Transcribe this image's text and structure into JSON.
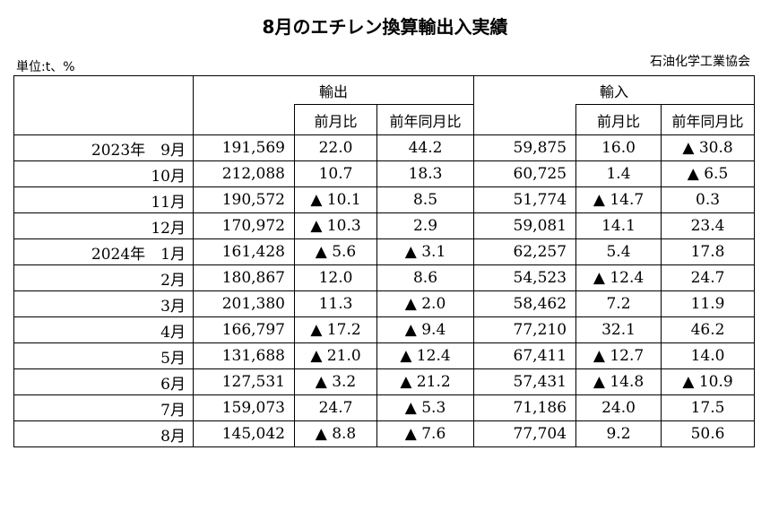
{
  "title": "8月のエチレン換算輸出入実績",
  "unit": "単位:t、%",
  "source": "石油化学工業協会",
  "headers": {
    "export": "輸出",
    "import": "輸入",
    "mom": "前月比",
    "yoy": "前年同月比"
  },
  "rows": [
    {
      "period": "2023年　9月",
      "exp": "191,569",
      "exp_mom": "22.0",
      "exp_yoy": "44.2",
      "imp": "59,875",
      "imp_mom": "16.0",
      "imp_yoy": "▲ 30.8"
    },
    {
      "period": "10月",
      "exp": "212,088",
      "exp_mom": "10.7",
      "exp_yoy": "18.3",
      "imp": "60,725",
      "imp_mom": "1.4",
      "imp_yoy": "▲ 6.5"
    },
    {
      "period": "11月",
      "exp": "190,572",
      "exp_mom": "▲ 10.1",
      "exp_yoy": "8.5",
      "imp": "51,774",
      "imp_mom": "▲ 14.7",
      "imp_yoy": "0.3"
    },
    {
      "period": "12月",
      "exp": "170,972",
      "exp_mom": "▲ 10.3",
      "exp_yoy": "2.9",
      "imp": "59,081",
      "imp_mom": "14.1",
      "imp_yoy": "23.4"
    },
    {
      "period": "2024年　1月",
      "exp": "161,428",
      "exp_mom": "▲ 5.6",
      "exp_yoy": "▲ 3.1",
      "imp": "62,257",
      "imp_mom": "5.4",
      "imp_yoy": "17.8"
    },
    {
      "period": "2月",
      "exp": "180,867",
      "exp_mom": "12.0",
      "exp_yoy": "8.6",
      "imp": "54,523",
      "imp_mom": "▲ 12.4",
      "imp_yoy": "24.7"
    },
    {
      "period": "3月",
      "exp": "201,380",
      "exp_mom": "11.3",
      "exp_yoy": "▲ 2.0",
      "imp": "58,462",
      "imp_mom": "7.2",
      "imp_yoy": "11.9"
    },
    {
      "period": "4月",
      "exp": "166,797",
      "exp_mom": "▲ 17.2",
      "exp_yoy": "▲ 9.4",
      "imp": "77,210",
      "imp_mom": "32.1",
      "imp_yoy": "46.2"
    },
    {
      "period": "5月",
      "exp": "131,688",
      "exp_mom": "▲ 21.0",
      "exp_yoy": "▲ 12.4",
      "imp": "67,411",
      "imp_mom": "▲ 12.7",
      "imp_yoy": "14.0"
    },
    {
      "period": "6月",
      "exp": "127,531",
      "exp_mom": "▲ 3.2",
      "exp_yoy": "▲ 21.2",
      "imp": "57,431",
      "imp_mom": "▲ 14.8",
      "imp_yoy": "▲ 10.9"
    },
    {
      "period": "7月",
      "exp": "159,073",
      "exp_mom": "24.7",
      "exp_yoy": "▲ 5.3",
      "imp": "71,186",
      "imp_mom": "24.0",
      "imp_yoy": "17.5"
    },
    {
      "period": "8月",
      "exp": "145,042",
      "exp_mom": "▲ 8.8",
      "exp_yoy": "▲ 7.6",
      "imp": "77,704",
      "imp_mom": "9.2",
      "imp_yoy": "50.6"
    }
  ]
}
